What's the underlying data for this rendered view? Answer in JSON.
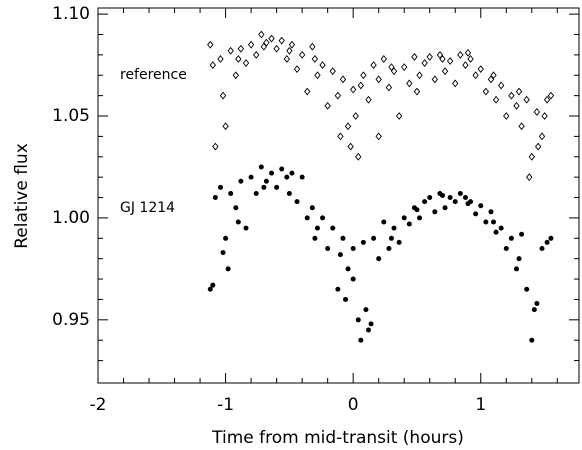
{
  "chart_data": {
    "type": "scatter",
    "xlabel": "Time from mid-transit (hours)",
    "ylabel": "Relative flux",
    "xlim": [
      -2,
      1.77
    ],
    "ylim": [
      0.919,
      1.103
    ],
    "xticks": [
      -2,
      -1,
      0,
      1
    ],
    "yticks": [
      {
        "value": 0.95,
        "label": "0.95"
      },
      {
        "value": 1.0,
        "label": "1.00"
      },
      {
        "value": 1.05,
        "label": "1.05"
      },
      {
        "value": 1.1,
        "label": "1.10"
      }
    ],
    "xminorticks": [
      -1.8,
      -1.6,
      -1.4,
      -1.2,
      -0.8,
      -0.6,
      -0.4,
      -0.2,
      0.2,
      0.4,
      0.6,
      0.8,
      1.2,
      1.4,
      1.6
    ],
    "yminorticks": [
      0.93,
      0.94,
      0.96,
      0.97,
      0.98,
      0.99,
      1.01,
      1.02,
      1.03,
      1.04,
      1.06,
      1.07,
      1.08,
      1.09
    ],
    "annotations": [
      "reference",
      "GJ 1214"
    ],
    "series": [
      {
        "name": "reference",
        "marker": "diamond-open",
        "color": "#000000",
        "x": [
          -1.12,
          -1.08,
          -1.04,
          -1.0,
          -0.96,
          -0.92,
          -0.88,
          -0.84,
          -0.8,
          -0.76,
          -0.72,
          -0.68,
          -0.64,
          -0.6,
          -0.56,
          -0.52,
          -0.48,
          -0.44,
          -0.4,
          -0.36,
          -0.32,
          -0.28,
          -0.24,
          -0.2,
          -0.16,
          -0.12,
          -0.08,
          -0.04,
          0.0,
          0.04,
          0.08,
          0.12,
          0.16,
          0.2,
          0.24,
          0.28,
          0.32,
          0.36,
          0.4,
          0.44,
          0.48,
          0.52,
          0.56,
          0.6,
          0.64,
          0.68,
          0.72,
          0.76,
          0.8,
          0.84,
          0.88,
          0.92,
          0.96,
          1.0,
          1.04,
          1.08,
          1.12,
          1.16,
          1.2,
          1.24,
          1.28,
          1.32,
          1.36,
          1.4,
          1.44,
          1.48,
          1.52,
          1.55,
          -1.1,
          -1.02,
          -0.9,
          -0.7,
          -0.5,
          -0.3,
          -0.1,
          -0.02,
          0.02,
          0.06,
          0.2,
          0.3,
          0.5,
          0.7,
          0.9,
          1.1,
          1.3,
          1.38,
          1.45,
          1.5
        ],
        "values": [
          1.085,
          1.035,
          1.078,
          1.045,
          1.082,
          1.07,
          1.083,
          1.076,
          1.085,
          1.08,
          1.09,
          1.086,
          1.088,
          1.083,
          1.087,
          1.078,
          1.085,
          1.073,
          1.08,
          1.062,
          1.084,
          1.07,
          1.075,
          1.055,
          1.072,
          1.06,
          1.068,
          1.045,
          1.063,
          1.03,
          1.07,
          1.058,
          1.075,
          1.068,
          1.078,
          1.064,
          1.072,
          1.05,
          1.074,
          1.066,
          1.079,
          1.07,
          1.076,
          1.079,
          1.068,
          1.08,
          1.072,
          1.077,
          1.066,
          1.08,
          1.075,
          1.078,
          1.07,
          1.073,
          1.062,
          1.068,
          1.058,
          1.065,
          1.05,
          1.06,
          1.055,
          1.045,
          1.058,
          1.03,
          1.052,
          1.04,
          1.058,
          1.06,
          1.075,
          1.06,
          1.078,
          1.084,
          1.082,
          1.078,
          1.04,
          1.035,
          1.05,
          1.065,
          1.04,
          1.074,
          1.062,
          1.078,
          1.081,
          1.07,
          1.062,
          1.02,
          1.035,
          1.05
        ]
      },
      {
        "name": "GJ 1214",
        "marker": "circle-filled",
        "color": "#000000",
        "x": [
          -1.12,
          -1.08,
          -1.04,
          -1.0,
          -0.96,
          -0.92,
          -0.88,
          -0.84,
          -0.8,
          -0.76,
          -0.72,
          -0.68,
          -0.64,
          -0.6,
          -0.56,
          -0.52,
          -0.48,
          -0.44,
          -0.4,
          -0.36,
          -0.32,
          -0.28,
          -0.24,
          -0.2,
          -0.16,
          -0.12,
          -0.08,
          -0.04,
          0.0,
          0.04,
          0.08,
          0.12,
          0.16,
          0.2,
          0.24,
          0.28,
          0.32,
          0.36,
          0.4,
          0.44,
          0.48,
          0.52,
          0.56,
          0.6,
          0.64,
          0.68,
          0.72,
          0.76,
          0.8,
          0.84,
          0.88,
          0.92,
          0.96,
          1.0,
          1.04,
          1.08,
          1.12,
          1.16,
          1.2,
          1.24,
          1.28,
          1.32,
          1.36,
          1.4,
          1.44,
          1.48,
          1.52,
          1.55,
          -1.1,
          -1.02,
          -0.98,
          -0.9,
          -0.7,
          -0.5,
          -0.3,
          -0.1,
          -0.06,
          0.0,
          0.06,
          0.1,
          0.14,
          0.3,
          0.5,
          0.7,
          0.9,
          1.1,
          1.3,
          1.42
        ],
        "values": [
          0.965,
          1.01,
          1.015,
          0.99,
          1.012,
          1.005,
          1.018,
          0.995,
          1.02,
          1.012,
          1.025,
          1.018,
          1.022,
          1.015,
          1.024,
          1.02,
          1.022,
          1.008,
          1.02,
          1.0,
          1.005,
          0.995,
          1.0,
          0.985,
          0.995,
          0.965,
          0.99,
          0.975,
          0.985,
          0.95,
          0.988,
          0.945,
          0.99,
          0.98,
          0.998,
          0.985,
          0.995,
          0.988,
          1.0,
          0.997,
          1.005,
          1.0,
          1.008,
          1.01,
          1.003,
          1.012,
          1.005,
          1.01,
          1.008,
          1.012,
          1.01,
          1.008,
          1.002,
          1.006,
          0.998,
          1.003,
          0.993,
          0.995,
          0.985,
          0.99,
          0.975,
          0.992,
          0.965,
          0.94,
          0.958,
          0.985,
          0.988,
          0.99,
          0.967,
          0.983,
          0.975,
          0.998,
          1.015,
          1.012,
          0.99,
          0.982,
          0.96,
          0.97,
          0.94,
          0.955,
          0.948,
          0.99,
          1.004,
          1.011,
          1.007,
          0.998,
          0.98,
          0.955
        ]
      }
    ]
  }
}
